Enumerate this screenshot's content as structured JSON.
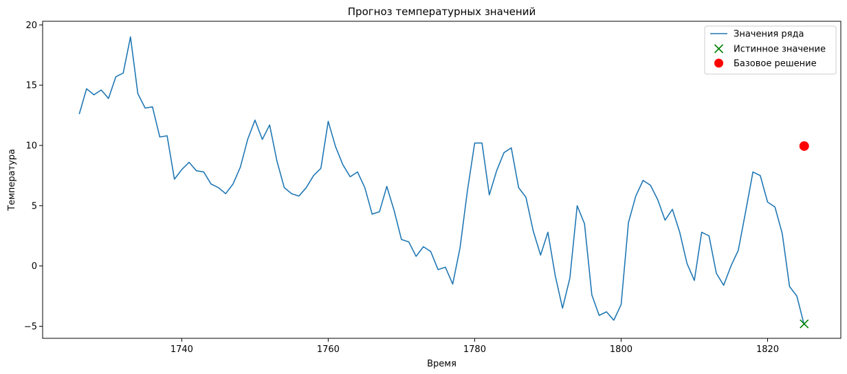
{
  "chart_data": {
    "type": "line",
    "title": "Прогноз температурных значений",
    "xlabel": "Время",
    "ylabel": "Температура",
    "xlim": [
      1721,
      1830
    ],
    "ylim": [
      -6,
      20.3
    ],
    "x_ticks": [
      1740,
      1760,
      1780,
      1800,
      1820
    ],
    "y_ticks": [
      -5,
      0,
      5,
      10,
      15,
      20
    ],
    "grid": false,
    "legend_position": "top-right",
    "series": [
      {
        "name": "Значения ряда",
        "kind": "line",
        "color": "#1f77b4",
        "x": [
          1726,
          1727,
          1728,
          1729,
          1730,
          1731,
          1732,
          1733,
          1734,
          1735,
          1736,
          1737,
          1738,
          1739,
          1740,
          1741,
          1742,
          1743,
          1744,
          1745,
          1746,
          1747,
          1748,
          1749,
          1750,
          1751,
          1752,
          1753,
          1754,
          1755,
          1756,
          1757,
          1758,
          1759,
          1760,
          1761,
          1762,
          1763,
          1764,
          1765,
          1766,
          1767,
          1768,
          1769,
          1770,
          1771,
          1772,
          1773,
          1774,
          1775,
          1776,
          1777,
          1778,
          1779,
          1780,
          1781,
          1782,
          1783,
          1784,
          1785,
          1786,
          1787,
          1788,
          1789,
          1790,
          1791,
          1792,
          1793,
          1794,
          1795,
          1796,
          1797,
          1798,
          1799,
          1800,
          1801,
          1802,
          1803,
          1804,
          1805,
          1806,
          1807,
          1808,
          1809,
          1810,
          1811,
          1812,
          1813,
          1814,
          1815,
          1816,
          1817,
          1818,
          1819,
          1820,
          1821,
          1822,
          1823,
          1824,
          1825
        ],
        "y": [
          12.6,
          14.7,
          14.2,
          14.6,
          13.9,
          15.7,
          16.0,
          19.0,
          14.3,
          13.1,
          13.2,
          10.7,
          10.8,
          7.2,
          8.0,
          8.6,
          7.9,
          7.8,
          6.8,
          6.5,
          6.0,
          6.8,
          8.2,
          10.5,
          12.1,
          10.5,
          11.7,
          8.7,
          6.5,
          6.0,
          5.8,
          6.5,
          7.5,
          8.1,
          12.0,
          9.9,
          8.4,
          7.4,
          7.8,
          6.5,
          4.3,
          4.5,
          6.6,
          4.6,
          2.2,
          2.0,
          0.8,
          1.6,
          1.2,
          -0.3,
          -0.1,
          -1.5,
          1.5,
          6.2,
          10.2,
          10.2,
          5.9,
          7.9,
          9.4,
          9.8,
          6.5,
          5.7,
          2.9,
          0.9,
          2.8,
          -0.8,
          -3.5,
          -1.0,
          5.0,
          3.5,
          -2.4,
          -4.1,
          -3.8,
          -4.5,
          -3.2,
          3.6,
          5.8,
          7.1,
          6.7,
          5.5,
          3.8,
          4.7,
          2.8,
          0.2,
          -1.2,
          2.8,
          2.5,
          -0.6,
          -1.6,
          0.0,
          1.3,
          4.5,
          7.8,
          7.5,
          5.3,
          4.9,
          2.7,
          -1.7,
          -2.5,
          -4.9
        ]
      },
      {
        "name": "Истинное значение",
        "kind": "scatter",
        "marker": "x",
        "color": "#008000",
        "x": [
          1825
        ],
        "y": [
          -4.8
        ]
      },
      {
        "name": "Базовое решение",
        "kind": "scatter",
        "marker": "o",
        "color": "#ff0000",
        "x": [
          1825
        ],
        "y": [
          9.95
        ]
      }
    ]
  }
}
